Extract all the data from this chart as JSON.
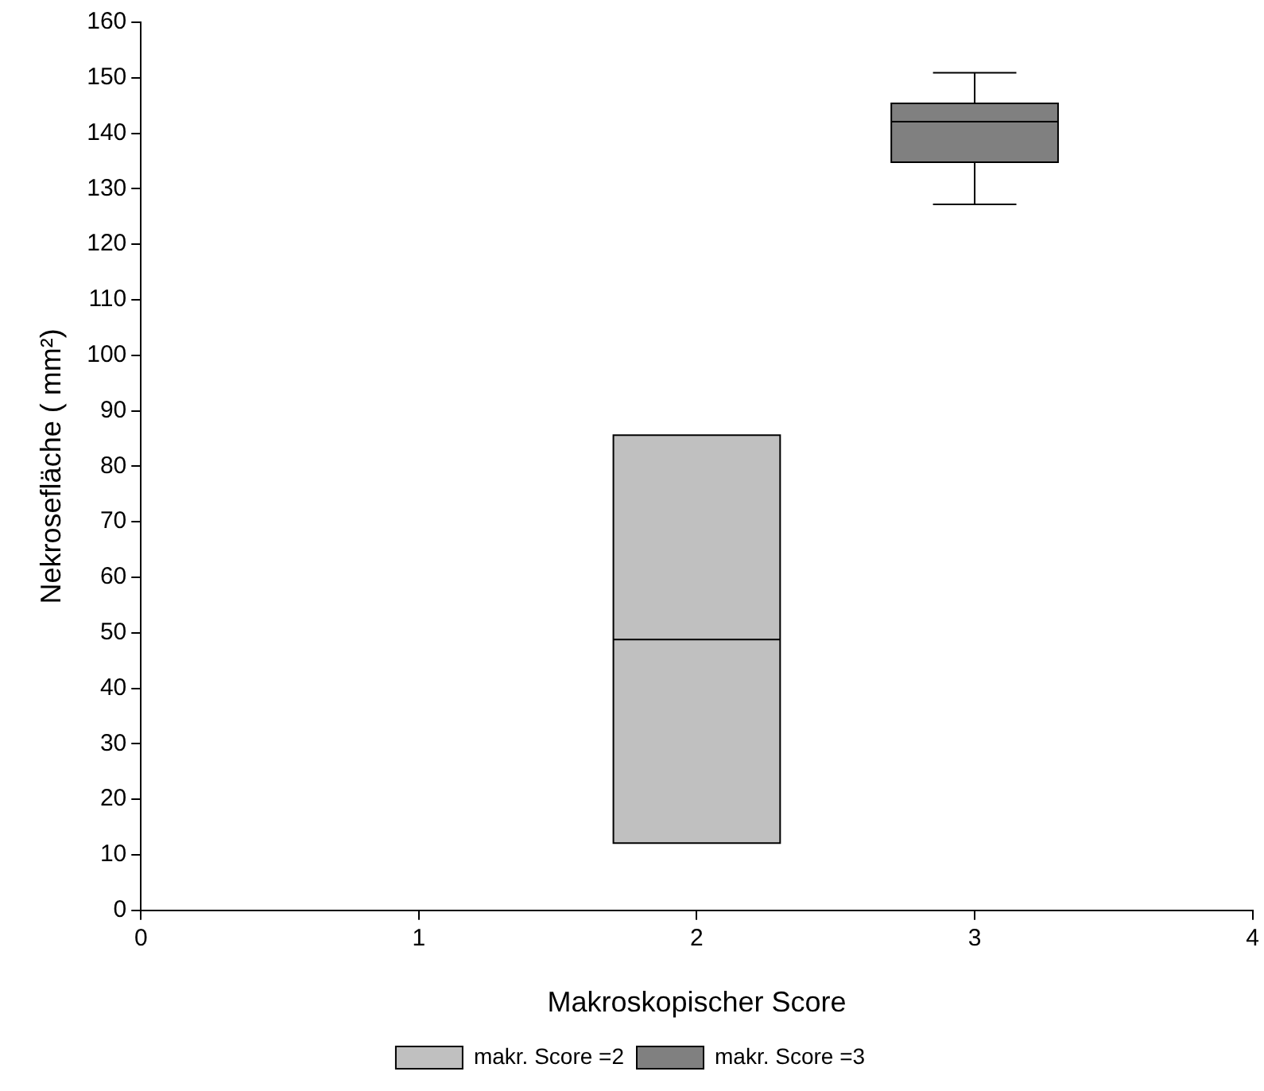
{
  "chart_data": {
    "type": "box",
    "xlabel": "Makroskopischer Score",
    "ylabel": "Nekrosefläche ( mm²)",
    "xlim": [
      0,
      4
    ],
    "xticks": [
      0,
      1,
      2,
      3,
      4
    ],
    "ylim": [
      0,
      160
    ],
    "yticks": [
      0,
      10,
      20,
      30,
      40,
      50,
      60,
      70,
      80,
      90,
      100,
      110,
      120,
      130,
      140,
      150,
      160
    ],
    "grid": false,
    "legend": "bottom",
    "series": [
      {
        "name": "makr. Score =2",
        "color": "#c0c0c0",
        "x": [
          2
        ],
        "boxes": [
          {
            "low": 12.1,
            "q1": 12.1,
            "median": 48.8,
            "q3": 85.6,
            "high": 85.6
          }
        ]
      },
      {
        "name": "makr. Score =3",
        "color": "#808080",
        "x": [
          3
        ],
        "boxes": [
          {
            "low": 127.2,
            "q1": 134.8,
            "median": 142.1,
            "q3": 145.4,
            "high": 150.9
          }
        ]
      }
    ]
  }
}
